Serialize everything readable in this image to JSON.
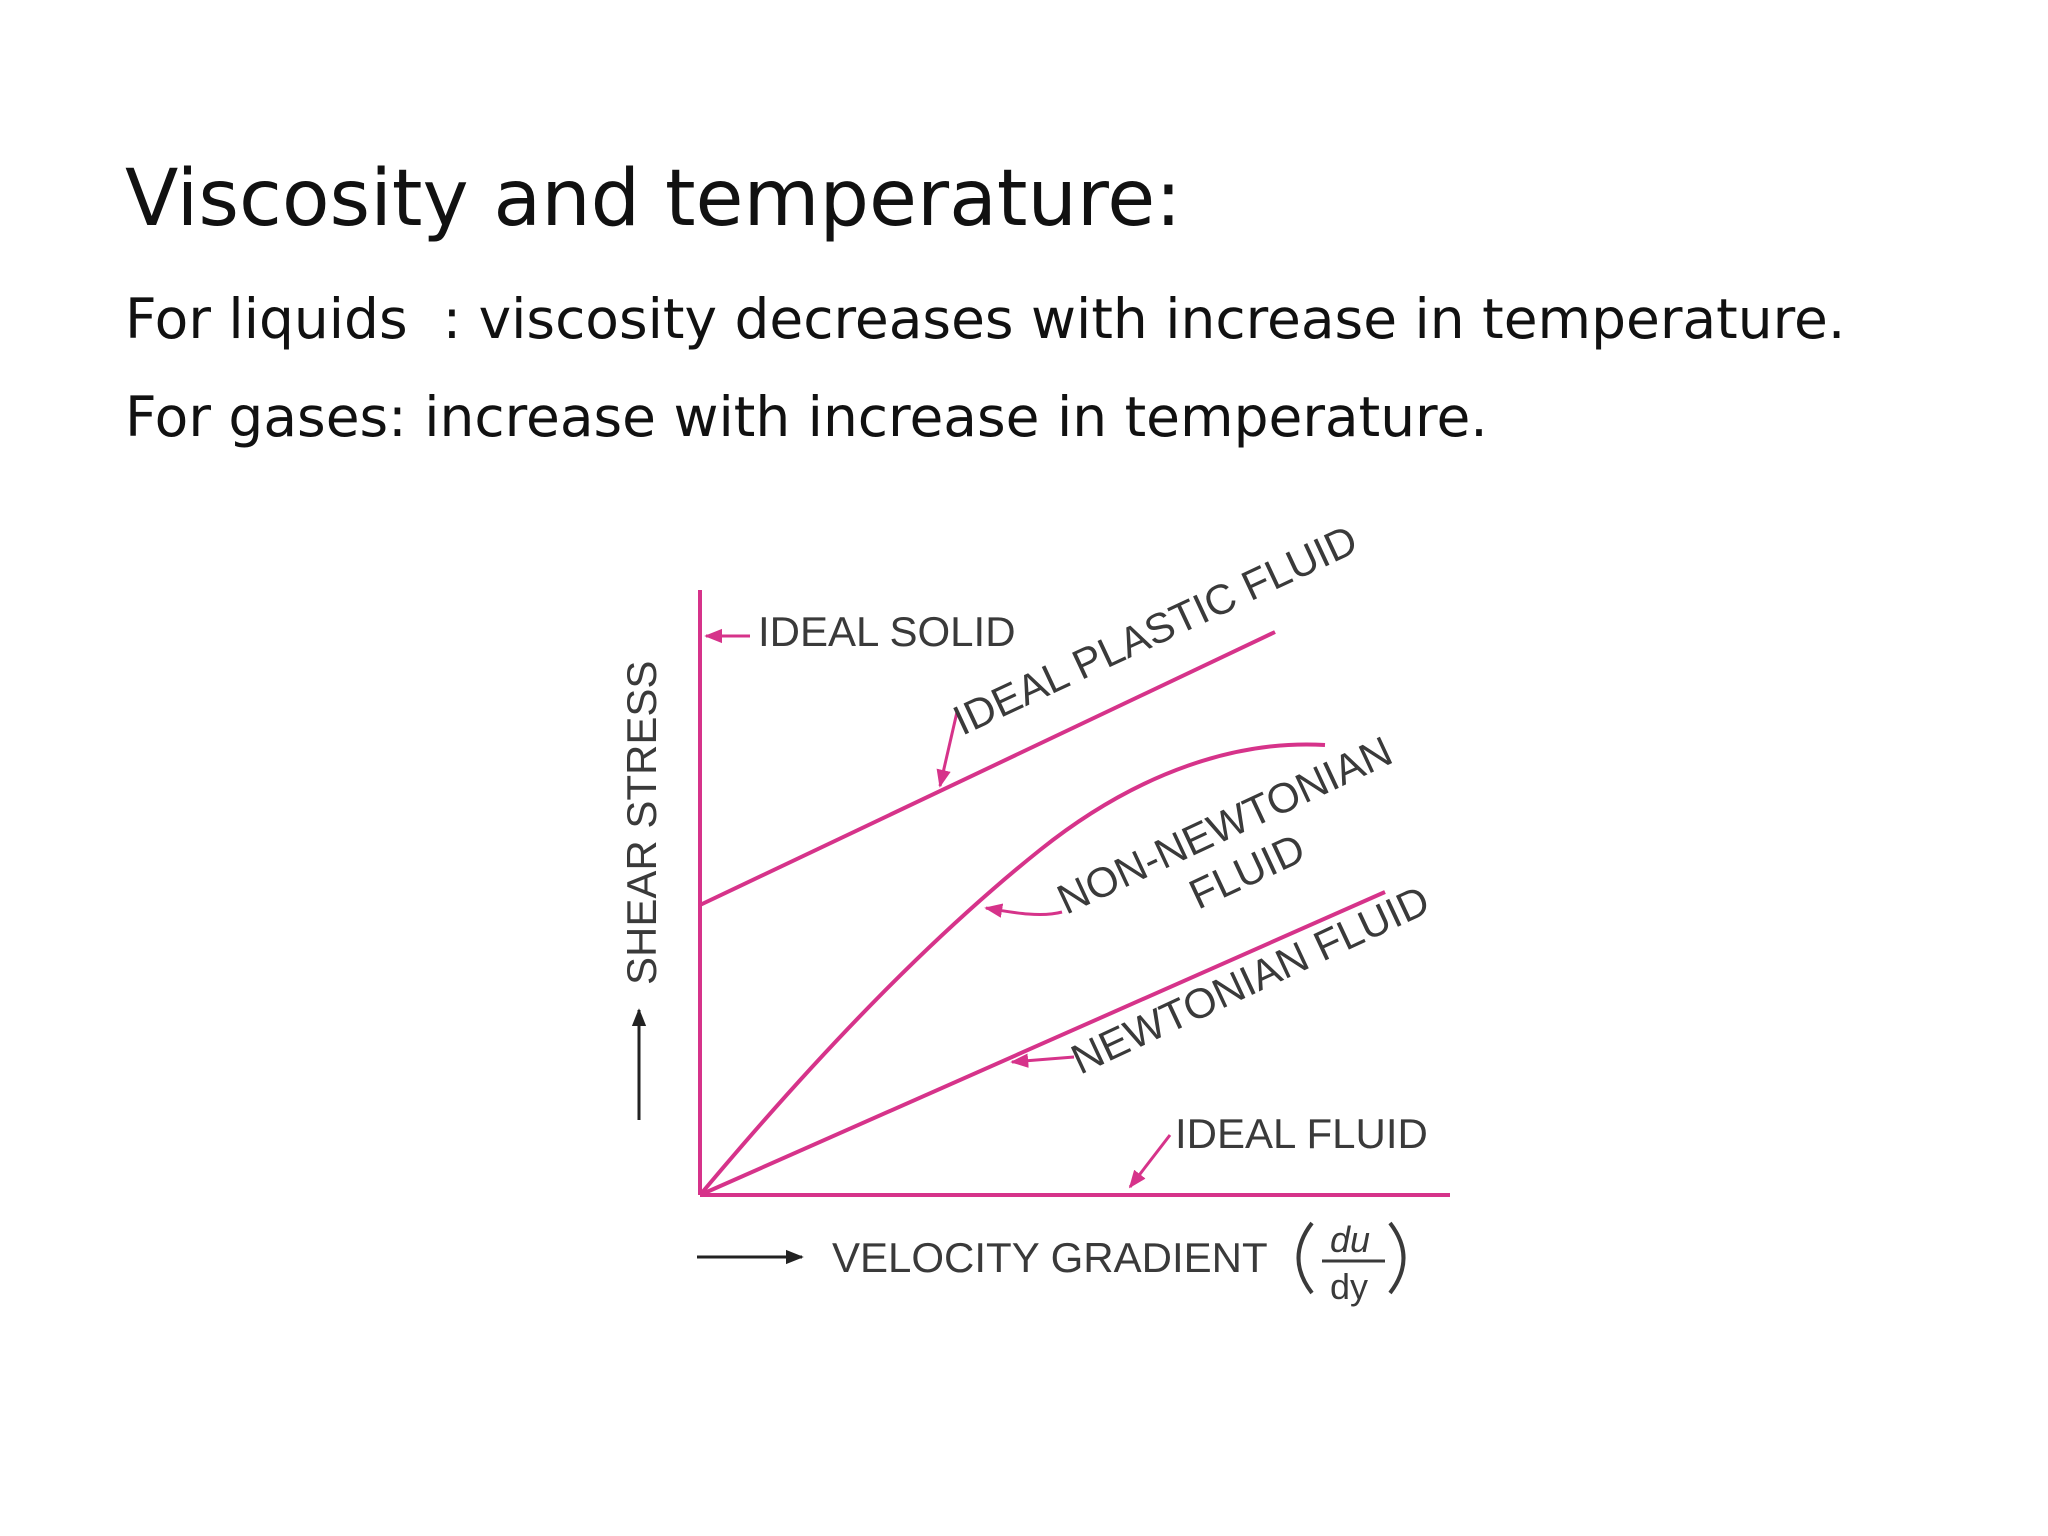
{
  "slide": {
    "title": "Viscosity and temperature:",
    "line_liquids": "For liquids  : viscosity decreases with increase in temperature.",
    "line_gases": "For gases: increase with increase in temperature."
  },
  "diagram": {
    "y_axis_label": "SHEAR STRESS",
    "x_axis_label": "VELOCITY GRADIENT",
    "x_axis_fraction_num": "du",
    "x_axis_fraction_den": "dy",
    "labels": {
      "ideal_solid": "IDEAL SOLID",
      "ideal_plastic_fluid": "IDEAL PLASTIC FLUID",
      "non_newtonian_line1": "NON-NEWTONIAN",
      "non_newtonian_line2": "FLUID",
      "newtonian_fluid": "NEWTONIAN FLUID",
      "ideal_fluid": "IDEAL FLUID"
    },
    "colors": {
      "curve": "#d6338a",
      "text": "#3a3a3a",
      "axis_arrow": "#222222"
    }
  }
}
